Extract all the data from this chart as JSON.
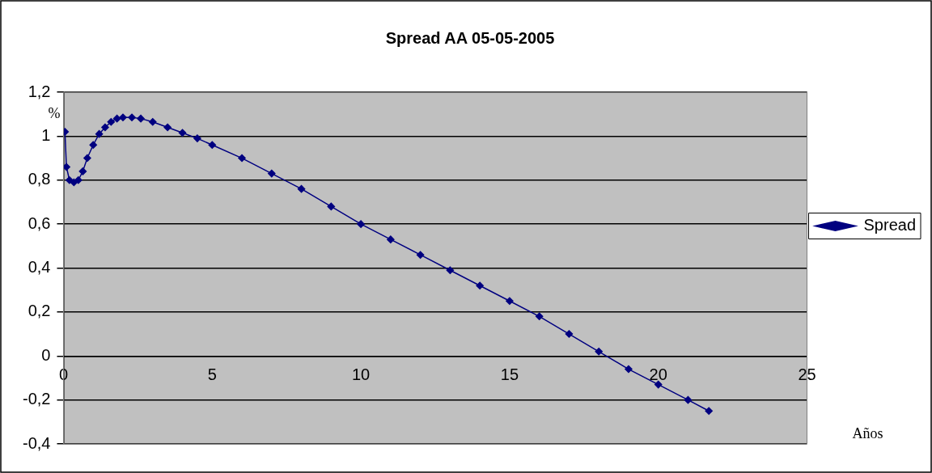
{
  "chart_data": {
    "type": "line",
    "title": "Spread AA 05-05-2005",
    "xlabel": "Años",
    "ylabel": "%",
    "xlim": [
      0,
      25
    ],
    "xticks": [
      0,
      5,
      10,
      15,
      20,
      25
    ],
    "ylim": [
      -0.4,
      1.2
    ],
    "yticks": [
      {
        "value": -0.4,
        "label": "-0,4"
      },
      {
        "value": -0.2,
        "label": "-0,2"
      },
      0,
      {
        "value": 0.2,
        "label": "0,2"
      },
      {
        "value": 0.4,
        "label": "0,4"
      },
      {
        "value": 0.6,
        "label": "0,6"
      },
      {
        "value": 0.8,
        "label": "0,8"
      },
      1,
      {
        "value": 1.2,
        "label": "1,2"
      }
    ],
    "grid": "y",
    "legend": "right",
    "marker": "diamond",
    "line_style": "solid",
    "series": [
      {
        "name": "Spread",
        "color": "#000080",
        "x": [
          0.05,
          0.1,
          0.2,
          0.35,
          0.5,
          0.65,
          0.8,
          1.0,
          1.2,
          1.4,
          1.6,
          1.8,
          2.0,
          2.3,
          2.6,
          3.0,
          3.5,
          4.0,
          4.5,
          5,
          6,
          7,
          8,
          9,
          10,
          11,
          12,
          13,
          14,
          15,
          16,
          17,
          18,
          19,
          20,
          21,
          21.7
        ],
        "values": [
          1.02,
          0.86,
          0.8,
          0.79,
          0.8,
          0.84,
          0.9,
          0.96,
          1.01,
          1.04,
          1.065,
          1.08,
          1.085,
          1.085,
          1.08,
          1.065,
          1.04,
          1.015,
          0.99,
          0.96,
          0.9,
          0.83,
          0.76,
          0.68,
          0.6,
          0.53,
          0.46,
          0.39,
          0.32,
          0.25,
          0.18,
          0.1,
          0.02,
          -0.06,
          -0.13,
          -0.2,
          -0.25
        ]
      }
    ]
  }
}
